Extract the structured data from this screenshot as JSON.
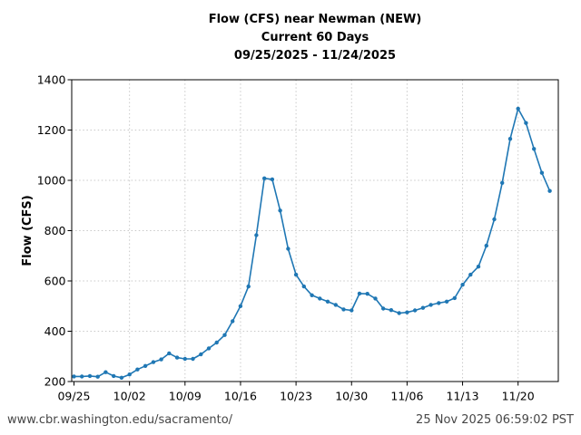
{
  "title": {
    "line1": "Flow (CFS) near Newman (NEW)",
    "line2": "Current 60 Days",
    "line3": "09/25/2025 - 11/24/2025"
  },
  "footer": {
    "url_text": "www.cbr.washington.edu/sacramento/",
    "timestamp": "25 Nov 2025 06:59:02 PST"
  },
  "colors": {
    "line": "#1f77b4",
    "marker": "#1f77b4",
    "grid": "#c9c9c9",
    "axis": "#000000",
    "tick_label": "#000000",
    "title_text": "#000000",
    "footer_text": "#464646",
    "background": "#ffffff"
  },
  "chart_data": {
    "type": "line",
    "title": "Flow (CFS) near Newman (NEW)",
    "subtitle": "Current 60 Days",
    "date_range": "09/25/2025 - 11/24/2025",
    "xlabel": "",
    "ylabel": "Flow (CFS)",
    "ylim": [
      200,
      1400
    ],
    "yticks": [
      200,
      400,
      600,
      800,
      1000,
      1200,
      1400
    ],
    "xticks": [
      {
        "day": 0,
        "label": "09/25"
      },
      {
        "day": 7,
        "label": "10/02"
      },
      {
        "day": 14,
        "label": "10/09"
      },
      {
        "day": 21,
        "label": "10/16"
      },
      {
        "day": 28,
        "label": "10/23"
      },
      {
        "day": 35,
        "label": "10/30"
      },
      {
        "day": 42,
        "label": "11/06"
      },
      {
        "day": 49,
        "label": "11/13"
      },
      {
        "day": 56,
        "label": "11/20"
      }
    ],
    "grid": "dotted",
    "legend": "none",
    "x": [
      "09/25",
      "09/26",
      "09/27",
      "09/28",
      "09/29",
      "09/30",
      "10/01",
      "10/02",
      "10/03",
      "10/04",
      "10/05",
      "10/06",
      "10/07",
      "10/08",
      "10/09",
      "10/10",
      "10/11",
      "10/12",
      "10/13",
      "10/14",
      "10/15",
      "10/16",
      "10/17",
      "10/18",
      "10/19",
      "10/20",
      "10/21",
      "10/22",
      "10/23",
      "10/24",
      "10/25",
      "10/26",
      "10/27",
      "10/28",
      "10/29",
      "10/30",
      "10/31",
      "11/01",
      "11/02",
      "11/03",
      "11/04",
      "11/05",
      "11/06",
      "11/07",
      "11/08",
      "11/09",
      "11/10",
      "11/11",
      "11/12",
      "11/13",
      "11/14",
      "11/15",
      "11/16",
      "11/17",
      "11/18",
      "11/19",
      "11/20",
      "11/21",
      "11/22",
      "11/23",
      "11/24"
    ],
    "values": [
      220,
      220,
      222,
      219,
      237,
      222,
      215,
      228,
      248,
      262,
      277,
      288,
      312,
      295,
      290,
      290,
      308,
      332,
      355,
      385,
      440,
      500,
      578,
      782,
      1008,
      1004,
      880,
      728,
      625,
      578,
      543,
      530,
      518,
      505,
      487,
      483,
      550,
      549,
      530,
      490,
      484,
      472,
      475,
      483,
      493,
      505,
      512,
      518,
      532,
      585,
      625,
      657,
      740,
      845,
      990,
      1165,
      1285,
      1228,
      1125,
      1030,
      958
    ]
  }
}
